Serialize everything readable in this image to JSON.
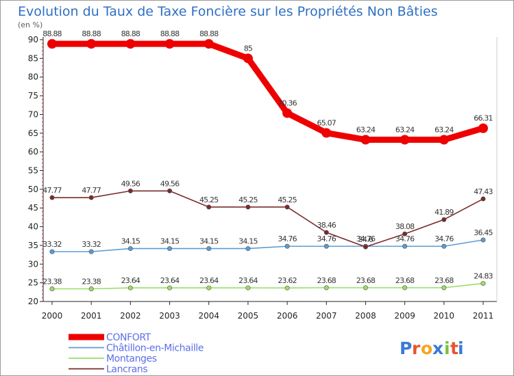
{
  "chart_data": {
    "type": "line",
    "title": "Evolution du Taux de Taxe Foncière sur les Propriétés Non Bâties",
    "ylabel": "(en %)",
    "xlabel": "",
    "ylim": [
      20,
      90
    ],
    "yticks": [
      20,
      25,
      30,
      35,
      40,
      45,
      50,
      55,
      60,
      65,
      70,
      75,
      80,
      85,
      90
    ],
    "categories": [
      "2000",
      "2001",
      "2002",
      "2003",
      "2004",
      "2005",
      "2006",
      "2007",
      "2008",
      "2009",
      "2010",
      "2011"
    ],
    "grid": false,
    "legend_position": "bottom-left",
    "series": [
      {
        "name": "CONFORT",
        "color": "#ee0000",
        "values": [
          88.88,
          88.88,
          88.88,
          88.88,
          88.88,
          85,
          70.36,
          65.07,
          63.24,
          63.24,
          63.24,
          66.31
        ],
        "labels": [
          "88.88",
          "88.88",
          "88.88",
          "88.88",
          "88.88",
          "85",
          "70.36",
          "65.07",
          "63.24",
          "63.24",
          "63.24",
          "66.31"
        ]
      },
      {
        "name": "Châtillon-en-Michaille",
        "color": "#5b9bd5",
        "values": [
          33.32,
          33.32,
          34.15,
          34.15,
          34.15,
          34.15,
          34.76,
          34.76,
          34.76,
          34.76,
          34.76,
          36.45
        ],
        "labels": [
          "33.32",
          "33.32",
          "34.15",
          "34.15",
          "34.15",
          "34.15",
          "34.76",
          "34.76",
          "34.76",
          "34.76",
          "34.76",
          "36.45"
        ]
      },
      {
        "name": "Montanges",
        "color": "#99dd66",
        "values": [
          23.38,
          23.38,
          23.64,
          23.64,
          23.64,
          23.64,
          23.62,
          23.68,
          23.68,
          23.68,
          23.68,
          24.83
        ],
        "labels": [
          "23.38",
          "23.38",
          "23.64",
          "23.64",
          "23.64",
          "23.64",
          "23.62",
          "23.68",
          "23.68",
          "23.68",
          "23.68",
          "24.83"
        ]
      },
      {
        "name": "Lancrans",
        "color": "#7a2a2a",
        "values": [
          47.77,
          47.77,
          49.56,
          49.56,
          45.25,
          45.25,
          45.25,
          38.46,
          34.6,
          38.08,
          41.89,
          47.43
        ],
        "labels": [
          "47.77",
          "47.77",
          "49.56",
          "49.56",
          "45.25",
          "45.25",
          "45.25",
          "38.46",
          "34.6",
          "38.08",
          "41.89",
          "47.43"
        ]
      }
    ]
  },
  "logo": {
    "text": "Proxiti",
    "letters": [
      "P",
      "r",
      "o",
      "x",
      "i",
      "t",
      "i"
    ],
    "colors": [
      "#3a7bd5",
      "#e8542c",
      "#f5a623",
      "#3a7bd5",
      "#7bc043",
      "#e8542c",
      "#3a7bd5"
    ]
  }
}
